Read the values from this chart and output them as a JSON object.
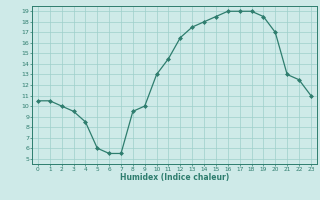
{
  "x": [
    0,
    1,
    2,
    3,
    4,
    5,
    6,
    7,
    8,
    9,
    10,
    11,
    12,
    13,
    14,
    15,
    16,
    17,
    18,
    19,
    20,
    21,
    22,
    23
  ],
  "y": [
    10.5,
    10.5,
    10.0,
    9.5,
    8.5,
    6.0,
    5.5,
    5.5,
    9.5,
    10.0,
    13.0,
    14.5,
    16.5,
    17.5,
    18.0,
    18.5,
    19.0,
    19.0,
    19.0,
    18.5,
    17.0,
    13.0,
    12.5,
    11.0
  ],
  "xlabel": "Humidex (Indice chaleur)",
  "xlim": [
    -0.5,
    23.5
  ],
  "ylim": [
    4.5,
    19.5
  ],
  "yticks": [
    5,
    6,
    7,
    8,
    9,
    10,
    11,
    12,
    13,
    14,
    15,
    16,
    17,
    18,
    19
  ],
  "xticks": [
    0,
    1,
    2,
    3,
    4,
    5,
    6,
    7,
    8,
    9,
    10,
    11,
    12,
    13,
    14,
    15,
    16,
    17,
    18,
    19,
    20,
    21,
    22,
    23
  ],
  "line_color": "#2e7d6e",
  "marker_color": "#2e7d6e",
  "bg_color": "#ceeae8",
  "grid_color": "#9ecfcb",
  "axes_color": "#2e7d6e",
  "tick_label_color": "#2e7d6e",
  "xlabel_color": "#2e7d6e"
}
